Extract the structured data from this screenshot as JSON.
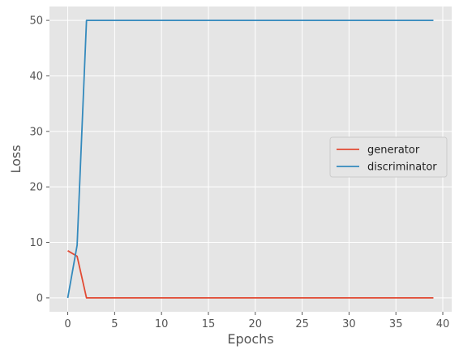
{
  "chart_data": {
    "type": "line",
    "title": "",
    "xlabel": "Epochs",
    "ylabel": "Loss",
    "xlim": [
      -1.95,
      40.95
    ],
    "ylim": [
      -2.5,
      52.5
    ],
    "xticks": [
      0,
      5,
      10,
      15,
      20,
      25,
      30,
      35,
      40
    ],
    "yticks": [
      0,
      10,
      20,
      30,
      40,
      50
    ],
    "grid": true,
    "legend_position": "center-right",
    "x": [
      0,
      1,
      2,
      3,
      4,
      5,
      6,
      7,
      8,
      9,
      10,
      11,
      12,
      13,
      14,
      15,
      16,
      17,
      18,
      19,
      20,
      21,
      22,
      23,
      24,
      25,
      26,
      27,
      28,
      29,
      30,
      31,
      32,
      33,
      34,
      35,
      36,
      37,
      38,
      39
    ],
    "series": [
      {
        "name": "generator",
        "color": "#e24a33",
        "values": [
          8.5,
          7.5,
          0,
          0,
          0,
          0,
          0,
          0,
          0,
          0,
          0,
          0,
          0,
          0,
          0,
          0,
          0,
          0,
          0,
          0,
          0,
          0,
          0,
          0,
          0,
          0,
          0,
          0,
          0,
          0,
          0,
          0,
          0,
          0,
          0,
          0,
          0,
          0,
          0,
          0
        ]
      },
      {
        "name": "discriminator",
        "color": "#348abd",
        "values": [
          0,
          9.5,
          50,
          50,
          50,
          50,
          50,
          50,
          50,
          50,
          50,
          50,
          50,
          50,
          50,
          50,
          50,
          50,
          50,
          50,
          50,
          50,
          50,
          50,
          50,
          50,
          50,
          50,
          50,
          50,
          50,
          50,
          50,
          50,
          50,
          50,
          50,
          50,
          50,
          50
        ]
      }
    ]
  }
}
